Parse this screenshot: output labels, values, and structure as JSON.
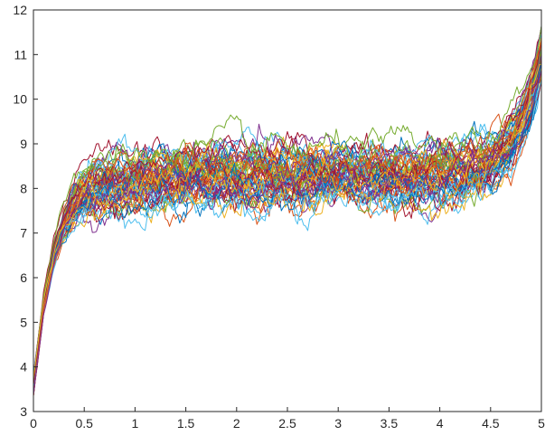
{
  "chart_data": {
    "type": "line",
    "title": "",
    "xlabel": "",
    "ylabel": "",
    "xlim": [
      0,
      5
    ],
    "ylim": [
      3,
      12
    ],
    "xticks": [
      "0",
      "0.5",
      "1",
      "1.5",
      "2",
      "2.5",
      "3",
      "3.5",
      "4",
      "4.5",
      "5"
    ],
    "yticks": [
      "3",
      "4",
      "5",
      "6",
      "7",
      "8",
      "9",
      "10",
      "11",
      "12"
    ],
    "grid": false,
    "legend": "none",
    "series_count": 60,
    "x": [
      0,
      0.1,
      0.2,
      0.3,
      0.4,
      0.5,
      0.6,
      0.7,
      0.8,
      1.0,
      1.25,
      1.5,
      2.0,
      2.5,
      3.0,
      3.5,
      4.0,
      4.25,
      4.5,
      4.6,
      4.7,
      4.8,
      4.9,
      4.95,
      5.0
    ],
    "mean_path": [
      3.6,
      5.4,
      6.5,
      7.2,
      7.6,
      7.85,
      8.0,
      8.1,
      8.15,
      8.2,
      8.25,
      8.25,
      8.3,
      8.3,
      8.3,
      8.3,
      8.3,
      8.35,
      8.6,
      8.8,
      9.1,
      9.5,
      10.1,
      10.5,
      11.0
    ],
    "spread": 0.55,
    "noise": 0.12,
    "colors": [
      "#0072BD",
      "#D95319",
      "#EDB120",
      "#7E2F8E",
      "#77AC30",
      "#4DBEEE",
      "#A2142F"
    ]
  }
}
